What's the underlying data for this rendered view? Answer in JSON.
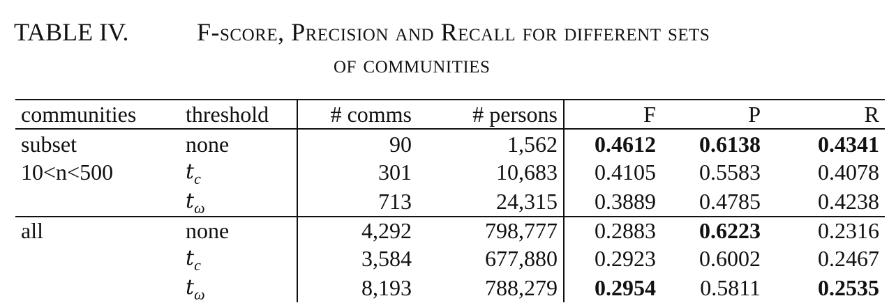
{
  "caption": {
    "label": "TABLE IV.",
    "line1": "F-score, Precision and Recall for different sets",
    "line2": "of communities"
  },
  "headers": [
    "communities",
    "threshold",
    "# comms",
    "# persons",
    "F",
    "P",
    "R"
  ],
  "rows": [
    {
      "communities": "subset",
      "threshold": "none",
      "comms": "90",
      "persons": "1,562",
      "F": "0.4612",
      "P": "0.6138",
      "R": "0.4341",
      "bold": [
        "F",
        "P",
        "R"
      ]
    },
    {
      "communities": "10<n<500",
      "threshold_base": "t",
      "threshold_sub": "c",
      "comms": "301",
      "persons": "10,683",
      "F": "0.4105",
      "P": "0.5583",
      "R": "0.4078",
      "bold": []
    },
    {
      "communities": "",
      "threshold_base": "t",
      "threshold_sub": "ω",
      "comms": "713",
      "persons": "24,315",
      "F": "0.3889",
      "P": "0.4785",
      "R": "0.4238",
      "bold": []
    },
    {
      "communities": "all",
      "threshold": "none",
      "comms": "4,292",
      "persons": "798,777",
      "F": "0.2883",
      "P": "0.6223",
      "R": "0.2316",
      "bold": [
        "P"
      ]
    },
    {
      "communities": "",
      "threshold_base": "t",
      "threshold_sub": "c",
      "comms": "3,584",
      "persons": "677,880",
      "F": "0.2923",
      "P": "0.6002",
      "R": "0.2467",
      "bold": []
    },
    {
      "communities": "",
      "threshold_base": "t",
      "threshold_sub": "ω",
      "comms": "8,193",
      "persons": "788,279",
      "F": "0.2954",
      "P": "0.5811",
      "R": "0.2535",
      "bold": [
        "F",
        "R"
      ]
    }
  ]
}
